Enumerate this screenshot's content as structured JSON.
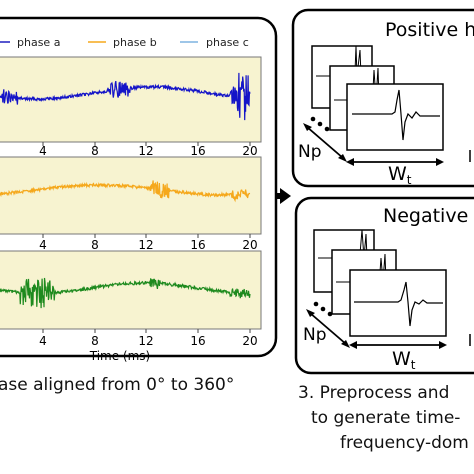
{
  "legend": {
    "items": [
      {
        "label": "phase a",
        "color": "#1f1fbf"
      },
      {
        "label": "phase b",
        "color": "#f5a81c"
      },
      {
        "label": "phase c",
        "color": "#7fb3e0"
      }
    ]
  },
  "plots": {
    "xticks": [
      "4",
      "8",
      "12",
      "16",
      "20"
    ],
    "xlabel": "Time (ms)",
    "series_colors": [
      "#1414c8",
      "#f5a81c",
      "#1e8a1e"
    ],
    "background": "#f7f3d0"
  },
  "left_caption": "ase aligned from 0° to 360°",
  "positive_box": {
    "title": "Positive h",
    "np_label": "Np",
    "w_label": "W",
    "w_sub": "t"
  },
  "negative_box": {
    "title": "Negative l",
    "np_label": "Np",
    "w_label": "W",
    "w_sub": "t"
  },
  "right_caption": {
    "line1": "3. Preprocess and",
    "line2": "to generate time-",
    "line3": "frequency-dom"
  }
}
